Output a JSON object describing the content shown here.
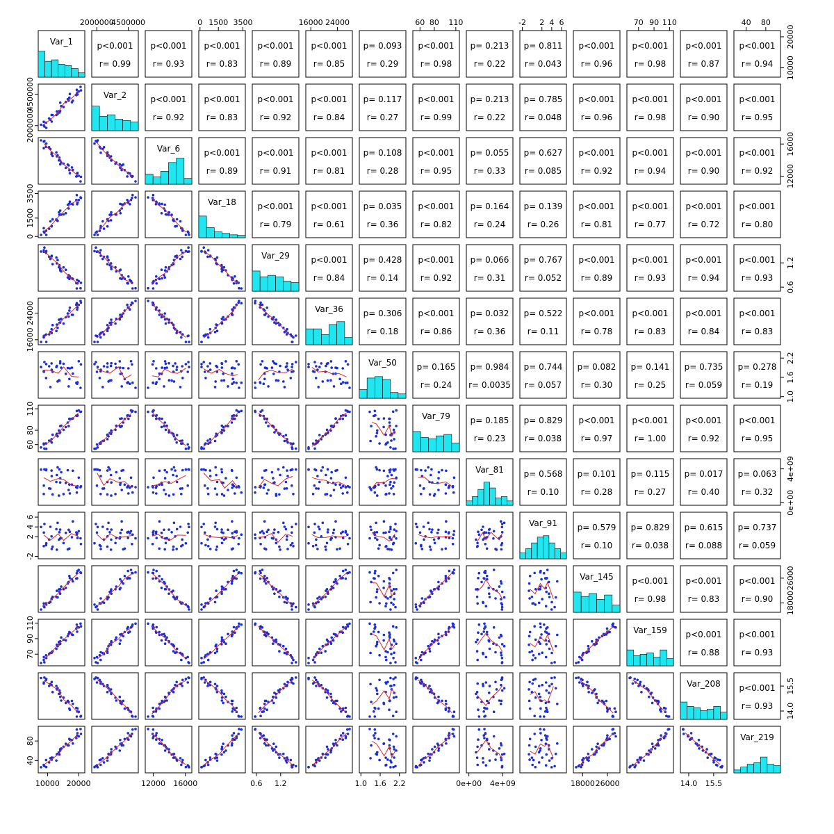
{
  "chart_data": {
    "type": "scatter-matrix",
    "variables": [
      "Var_1",
      "Var_2",
      "Var_6",
      "Var_18",
      "Var_29",
      "Var_36",
      "Var_50",
      "Var_79",
      "Var_81",
      "Var_91",
      "Var_145",
      "Var_159",
      "Var_208",
      "Var_219"
    ],
    "axis_ticks": [
      {
        "labels": [
          "10000",
          "20000"
        ],
        "values": [
          10000,
          20000
        ],
        "range": [
          7000,
          22000
        ]
      },
      {
        "labels": [
          "2000000",
          "4500000"
        ],
        "values": [
          2000000,
          4500000
        ],
        "range": [
          1600000,
          5300000
        ]
      },
      {
        "labels": [
          "12000",
          "16000"
        ],
        "values": [
          12000,
          16000
        ],
        "range": [
          11000,
          16800
        ]
      },
      {
        "labels": [
          "0",
          "1500",
          "3500"
        ],
        "values": [
          0,
          1500,
          3500
        ],
        "range": [
          -100,
          3700
        ]
      },
      {
        "labels": [
          "0.6",
          "1.2"
        ],
        "values": [
          0.6,
          1.2
        ],
        "range": [
          0.5,
          1.65
        ]
      },
      {
        "labels": [
          "16000",
          "24000"
        ],
        "values": [
          16000,
          24000
        ],
        "range": [
          14500,
          28500
        ]
      },
      {
        "labels": [
          "1.0",
          "1.6",
          "2.2"
        ],
        "values": [
          1.0,
          1.6,
          2.2
        ],
        "range": [
          0.95,
          2.4
        ]
      },
      {
        "labels": [
          "60",
          "80",
          "110"
        ],
        "values": [
          60,
          80,
          110
        ],
        "range": [
          50,
          115
        ]
      },
      {
        "labels": [
          "0e+00",
          "4e+09"
        ],
        "values": [
          0,
          4000000000
        ],
        "range": [
          -300000000,
          5200000000
        ]
      },
      {
        "labels": [
          "-2",
          "2",
          "4",
          "6"
        ],
        "values": [
          -2,
          2,
          4,
          6
        ],
        "range": [
          -2.5,
          7
        ]
      },
      {
        "labels": [
          "18000",
          "26000"
        ],
        "values": [
          18000,
          26000
        ],
        "range": [
          15000,
          30000
        ]
      },
      {
        "labels": [
          "70",
          "90",
          "110"
        ],
        "values": [
          70,
          90,
          110
        ],
        "range": [
          55,
          115
        ]
      },
      {
        "labels": [
          "14.0",
          "15.5"
        ],
        "values": [
          14.0,
          15.5
        ],
        "range": [
          13.5,
          16.3
        ]
      },
      {
        "labels": [
          "40",
          "80"
        ],
        "values": [
          40,
          80
        ],
        "range": [
          15,
          110
        ]
      }
    ],
    "upper_panels": [
      {
        "row": 0,
        "col": 1,
        "p": "p<0.001",
        "r": "r= 0.99"
      },
      {
        "row": 0,
        "col": 2,
        "p": "p<0.001",
        "r": "r= 0.93"
      },
      {
        "row": 0,
        "col": 3,
        "p": "p<0.001",
        "r": "r= 0.83"
      },
      {
        "row": 0,
        "col": 4,
        "p": "p<0.001",
        "r": "r= 0.89"
      },
      {
        "row": 0,
        "col": 5,
        "p": "p<0.001",
        "r": "r= 0.85"
      },
      {
        "row": 0,
        "col": 6,
        "p": "p= 0.093",
        "r": "r= 0.29"
      },
      {
        "row": 0,
        "col": 7,
        "p": "p<0.001",
        "r": "r= 0.98"
      },
      {
        "row": 0,
        "col": 8,
        "p": "p= 0.213",
        "r": "r= 0.22"
      },
      {
        "row": 0,
        "col": 9,
        "p": "p= 0.811",
        "r": "r= 0.043"
      },
      {
        "row": 0,
        "col": 10,
        "p": "p<0.001",
        "r": "r= 0.96"
      },
      {
        "row": 0,
        "col": 11,
        "p": "p<0.001",
        "r": "r= 0.98"
      },
      {
        "row": 0,
        "col": 12,
        "p": "p<0.001",
        "r": "r= 0.87"
      },
      {
        "row": 0,
        "col": 13,
        "p": "p<0.001",
        "r": "r= 0.94"
      },
      {
        "row": 1,
        "col": 2,
        "p": "p<0.001",
        "r": "r= 0.92"
      },
      {
        "row": 1,
        "col": 3,
        "p": "p<0.001",
        "r": "r= 0.83"
      },
      {
        "row": 1,
        "col": 4,
        "p": "p<0.001",
        "r": "r= 0.92"
      },
      {
        "row": 1,
        "col": 5,
        "p": "p<0.001",
        "r": "r= 0.84"
      },
      {
        "row": 1,
        "col": 6,
        "p": "p= 0.117",
        "r": "r= 0.27"
      },
      {
        "row": 1,
        "col": 7,
        "p": "p<0.001",
        "r": "r= 0.99"
      },
      {
        "row": 1,
        "col": 8,
        "p": "p= 0.213",
        "r": "r= 0.22"
      },
      {
        "row": 1,
        "col": 9,
        "p": "p= 0.785",
        "r": "r= 0.048"
      },
      {
        "row": 1,
        "col": 10,
        "p": "p<0.001",
        "r": "r= 0.96"
      },
      {
        "row": 1,
        "col": 11,
        "p": "p<0.001",
        "r": "r= 0.98"
      },
      {
        "row": 1,
        "col": 12,
        "p": "p<0.001",
        "r": "r= 0.90"
      },
      {
        "row": 1,
        "col": 13,
        "p": "p<0.001",
        "r": "r= 0.95"
      },
      {
        "row": 2,
        "col": 3,
        "p": "p<0.001",
        "r": "r= 0.89"
      },
      {
        "row": 2,
        "col": 4,
        "p": "p<0.001",
        "r": "r= 0.91"
      },
      {
        "row": 2,
        "col": 5,
        "p": "p<0.001",
        "r": "r= 0.81"
      },
      {
        "row": 2,
        "col": 6,
        "p": "p= 0.108",
        "r": "r= 0.28"
      },
      {
        "row": 2,
        "col": 7,
        "p": "p<0.001",
        "r": "r= 0.95"
      },
      {
        "row": 2,
        "col": 8,
        "p": "p= 0.055",
        "r": "r= 0.33"
      },
      {
        "row": 2,
        "col": 9,
        "p": "p= 0.627",
        "r": "r= 0.085"
      },
      {
        "row": 2,
        "col": 10,
        "p": "p<0.001",
        "r": "r= 0.92"
      },
      {
        "row": 2,
        "col": 11,
        "p": "p<0.001",
        "r": "r= 0.94"
      },
      {
        "row": 2,
        "col": 12,
        "p": "p<0.001",
        "r": "r= 0.90"
      },
      {
        "row": 2,
        "col": 13,
        "p": "p<0.001",
        "r": "r= 0.92"
      },
      {
        "row": 3,
        "col": 4,
        "p": "p<0.001",
        "r": "r= 0.79"
      },
      {
        "row": 3,
        "col": 5,
        "p": "p<0.001",
        "r": "r= 0.61"
      },
      {
        "row": 3,
        "col": 6,
        "p": "p= 0.035",
        "r": "r= 0.36"
      },
      {
        "row": 3,
        "col": 7,
        "p": "p<0.001",
        "r": "r= 0.82"
      },
      {
        "row": 3,
        "col": 8,
        "p": "p= 0.164",
        "r": "r= 0.24"
      },
      {
        "row": 3,
        "col": 9,
        "p": "p= 0.139",
        "r": "r= 0.26"
      },
      {
        "row": 3,
        "col": 10,
        "p": "p<0.001",
        "r": "r= 0.81"
      },
      {
        "row": 3,
        "col": 11,
        "p": "p<0.001",
        "r": "r= 0.77"
      },
      {
        "row": 3,
        "col": 12,
        "p": "p<0.001",
        "r": "r= 0.72"
      },
      {
        "row": 3,
        "col": 13,
        "p": "p<0.001",
        "r": "r= 0.80"
      },
      {
        "row": 4,
        "col": 5,
        "p": "p<0.001",
        "r": "r= 0.84"
      },
      {
        "row": 4,
        "col": 6,
        "p": "p= 0.428",
        "r": "r= 0.14"
      },
      {
        "row": 4,
        "col": 7,
        "p": "p<0.001",
        "r": "r= 0.92"
      },
      {
        "row": 4,
        "col": 8,
        "p": "p= 0.066",
        "r": "r= 0.31"
      },
      {
        "row": 4,
        "col": 9,
        "p": "p= 0.767",
        "r": "r= 0.052"
      },
      {
        "row": 4,
        "col": 10,
        "p": "p<0.001",
        "r": "r= 0.89"
      },
      {
        "row": 4,
        "col": 11,
        "p": "p<0.001",
        "r": "r= 0.93"
      },
      {
        "row": 4,
        "col": 12,
        "p": "p<0.001",
        "r": "r= 0.94"
      },
      {
        "row": 4,
        "col": 13,
        "p": "p<0.001",
        "r": "r= 0.93"
      },
      {
        "row": 5,
        "col": 6,
        "p": "p= 0.306",
        "r": "r= 0.18"
      },
      {
        "row": 5,
        "col": 7,
        "p": "p<0.001",
        "r": "r= 0.86"
      },
      {
        "row": 5,
        "col": 8,
        "p": "p= 0.032",
        "r": "r= 0.36"
      },
      {
        "row": 5,
        "col": 9,
        "p": "p= 0.522",
        "r": "r= 0.11"
      },
      {
        "row": 5,
        "col": 10,
        "p": "p<0.001",
        "r": "r= 0.78"
      },
      {
        "row": 5,
        "col": 11,
        "p": "p<0.001",
        "r": "r= 0.83"
      },
      {
        "row": 5,
        "col": 12,
        "p": "p<0.001",
        "r": "r= 0.84"
      },
      {
        "row": 5,
        "col": 13,
        "p": "p<0.001",
        "r": "r= 0.83"
      },
      {
        "row": 6,
        "col": 7,
        "p": "p= 0.165",
        "r": "r= 0.24"
      },
      {
        "row": 6,
        "col": 8,
        "p": "p= 0.984",
        "r": "r= 0.0035"
      },
      {
        "row": 6,
        "col": 9,
        "p": "p= 0.744",
        "r": "r= 0.057"
      },
      {
        "row": 6,
        "col": 10,
        "p": "p= 0.082",
        "r": "r= 0.30"
      },
      {
        "row": 6,
        "col": 11,
        "p": "p= 0.141",
        "r": "r= 0.25"
      },
      {
        "row": 6,
        "col": 12,
        "p": "p= 0.735",
        "r": "r= 0.059"
      },
      {
        "row": 6,
        "col": 13,
        "p": "p= 0.278",
        "r": "r= 0.19"
      },
      {
        "row": 7,
        "col": 8,
        "p": "p= 0.185",
        "r": "r= 0.23"
      },
      {
        "row": 7,
        "col": 9,
        "p": "p= 0.829",
        "r": "r= 0.038"
      },
      {
        "row": 7,
        "col": 10,
        "p": "p<0.001",
        "r": "r= 0.97"
      },
      {
        "row": 7,
        "col": 11,
        "p": "p<0.001",
        "r": "r= 1.00"
      },
      {
        "row": 7,
        "col": 12,
        "p": "p<0.001",
        "r": "r= 0.92"
      },
      {
        "row": 7,
        "col": 13,
        "p": "p<0.001",
        "r": "r= 0.95"
      },
      {
        "row": 8,
        "col": 9,
        "p": "p= 0.568",
        "r": "r= 0.10"
      },
      {
        "row": 8,
        "col": 10,
        "p": "p= 0.101",
        "r": "r= 0.28"
      },
      {
        "row": 8,
        "col": 11,
        "p": "p= 0.115",
        "r": "r= 0.27"
      },
      {
        "row": 8,
        "col": 12,
        "p": "p= 0.017",
        "r": "r= 0.40"
      },
      {
        "row": 8,
        "col": 13,
        "p": "p= 0.063",
        "r": "r= 0.32"
      },
      {
        "row": 9,
        "col": 10,
        "p": "p= 0.579",
        "r": "r= 0.10"
      },
      {
        "row": 9,
        "col": 11,
        "p": "p= 0.829",
        "r": "r= 0.038"
      },
      {
        "row": 9,
        "col": 12,
        "p": "p= 0.615",
        "r": "r= 0.088"
      },
      {
        "row": 9,
        "col": 13,
        "p": "p= 0.737",
        "r": "r= 0.059"
      },
      {
        "row": 10,
        "col": 11,
        "p": "p<0.001",
        "r": "r= 0.98"
      },
      {
        "row": 10,
        "col": 12,
        "p": "p<0.001",
        "r": "r= 0.83"
      },
      {
        "row": 10,
        "col": 13,
        "p": "p<0.001",
        "r": "r= 0.90"
      },
      {
        "row": 11,
        "col": 12,
        "p": "p<0.001",
        "r": "r= 0.88"
      },
      {
        "row": 11,
        "col": 13,
        "p": "p<0.001",
        "r": "r= 0.93"
      },
      {
        "row": 12,
        "col": 13,
        "p": "p<0.001",
        "r": "r= 0.93"
      }
    ],
    "histograms": [
      [
        0.9,
        0.55,
        0.6,
        0.45,
        0.4,
        0.3,
        0.15
      ],
      [
        0.85,
        0.5,
        0.55,
        0.4,
        0.35,
        0.3
      ],
      [
        0.35,
        0.25,
        0.45,
        0.75,
        0.9,
        0.2
      ],
      [
        0.75,
        0.35,
        0.2,
        0.15,
        0.1,
        0.08
      ],
      [
        0.7,
        0.5,
        0.55,
        0.5,
        0.35,
        0.3
      ],
      [
        0.55,
        0.55,
        0.35,
        0.7,
        0.8,
        0.25
      ],
      [
        0.3,
        0.7,
        0.75,
        0.65,
        0.2,
        0.15
      ],
      [
        0.7,
        0.5,
        0.45,
        0.55,
        0.6,
        0.3
      ],
      [
        0.15,
        0.3,
        0.55,
        0.8,
        0.6,
        0.25,
        0.3,
        0.15
      ],
      [
        0.2,
        0.35,
        0.55,
        0.75,
        0.8,
        0.55,
        0.35,
        0.2
      ],
      [
        0.7,
        0.55,
        0.65,
        0.45,
        0.6,
        0.25
      ],
      [
        0.55,
        0.35,
        0.4,
        0.45,
        0.3,
        0.55,
        0.25
      ],
      [
        0.6,
        0.45,
        0.4,
        0.3,
        0.35,
        0.45,
        0.25
      ],
      [
        0.1,
        0.2,
        0.3,
        0.35,
        0.55,
        0.3,
        0.25
      ]
    ]
  }
}
